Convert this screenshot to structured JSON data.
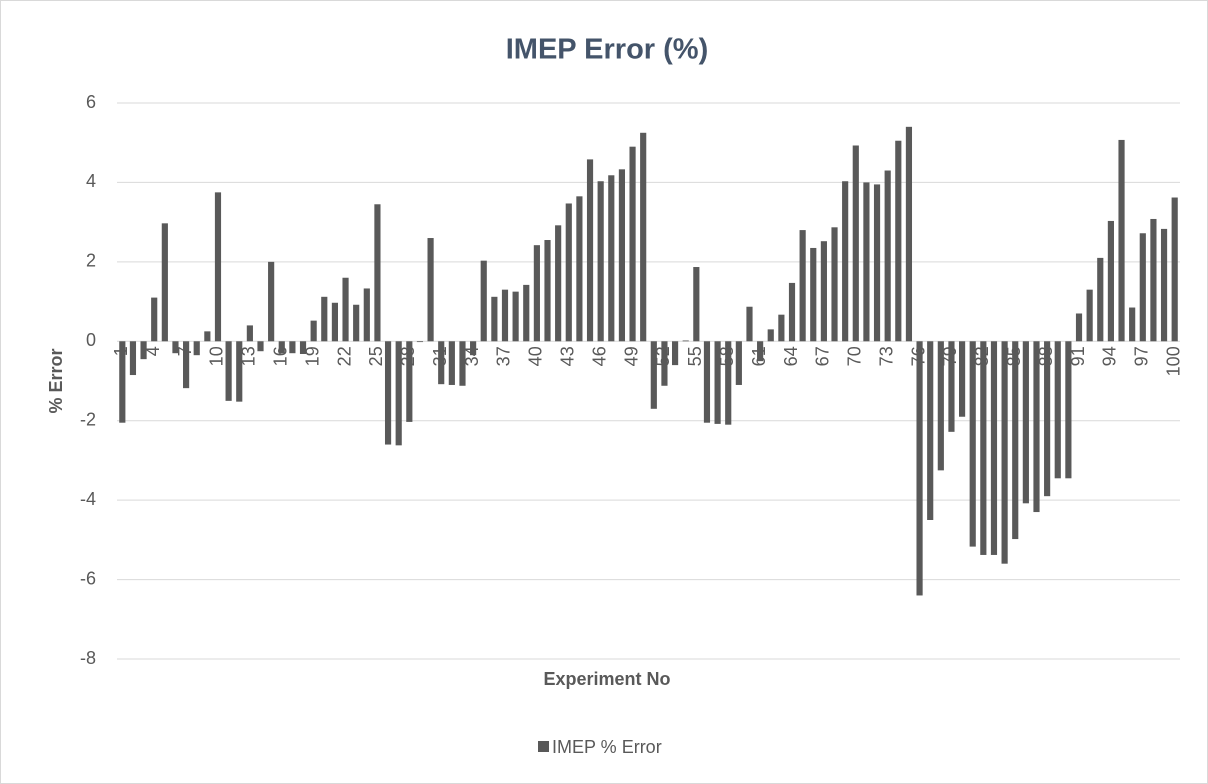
{
  "chart_data": {
    "type": "bar",
    "title": "IMEP Error (%)",
    "x_label": "Experiment No",
    "y_label": "% Error",
    "categories": [
      "1",
      null,
      null,
      "4",
      null,
      null,
      "7",
      null,
      null,
      "10",
      null,
      null,
      "13",
      null,
      null,
      "16",
      null,
      null,
      "19",
      null,
      null,
      "22",
      null,
      null,
      "25",
      null,
      null,
      "28",
      null,
      null,
      "31",
      null,
      null,
      "34",
      null,
      null,
      "37",
      null,
      null,
      "40",
      null,
      null,
      "43",
      null,
      null,
      "46",
      null,
      null,
      "49",
      null,
      null,
      "52",
      null,
      null,
      "55",
      null,
      null,
      "58",
      null,
      null,
      "61",
      null,
      null,
      "64",
      null,
      null,
      "67",
      null,
      null,
      "70",
      null,
      null,
      "73",
      null,
      null,
      "76",
      null,
      null,
      "79",
      null,
      null,
      "82",
      null,
      null,
      "85",
      null,
      null,
      "88",
      null,
      null,
      "91",
      null,
      null,
      "94",
      null,
      null,
      "97",
      null,
      null,
      "100"
    ],
    "series": [
      {
        "name": "IMEP % Error",
        "color": "#595959",
        "values": [
          -2.05,
          -0.85,
          -0.45,
          1.1,
          2.97,
          -0.3,
          -1.18,
          -0.35,
          0.25,
          3.75,
          -1.5,
          -1.52,
          0.4,
          -0.25,
          2.0,
          -0.3,
          -0.3,
          -0.32,
          0.52,
          1.12,
          0.97,
          1.6,
          0.92,
          1.33,
          3.45,
          -2.6,
          -2.62,
          -2.03,
          -0.02,
          2.6,
          -1.08,
          -1.1,
          -1.12,
          -0.35,
          2.03,
          1.12,
          1.3,
          1.25,
          1.42,
          2.42,
          2.55,
          2.92,
          3.47,
          3.65,
          4.58,
          4.03,
          4.18,
          4.33,
          4.9,
          5.25,
          -1.7,
          -1.12,
          -0.6,
          0.02,
          1.87,
          -2.05,
          -2.08,
          -2.1,
          -1.1,
          0.87,
          -0.5,
          0.3,
          0.67,
          1.47,
          2.8,
          2.35,
          2.52,
          2.87,
          4.03,
          4.93,
          4.0,
          3.95,
          4.3,
          5.05,
          5.4,
          -6.4,
          -4.5,
          -3.25,
          -2.28,
          -1.9,
          -5.17,
          -5.38,
          -5.38,
          -5.6,
          -4.98,
          -4.08,
          -4.3,
          -3.9,
          -3.45,
          -3.45,
          0.7,
          1.3,
          2.1,
          3.03,
          5.07,
          0.85,
          2.72,
          3.08,
          2.83,
          3.62
        ]
      }
    ],
    "ylim": [
      -8,
      6
    ],
    "yticks": [
      -8,
      -6,
      -4,
      -2,
      0,
      2,
      4,
      6
    ],
    "grid": true,
    "legend": "bottom"
  }
}
